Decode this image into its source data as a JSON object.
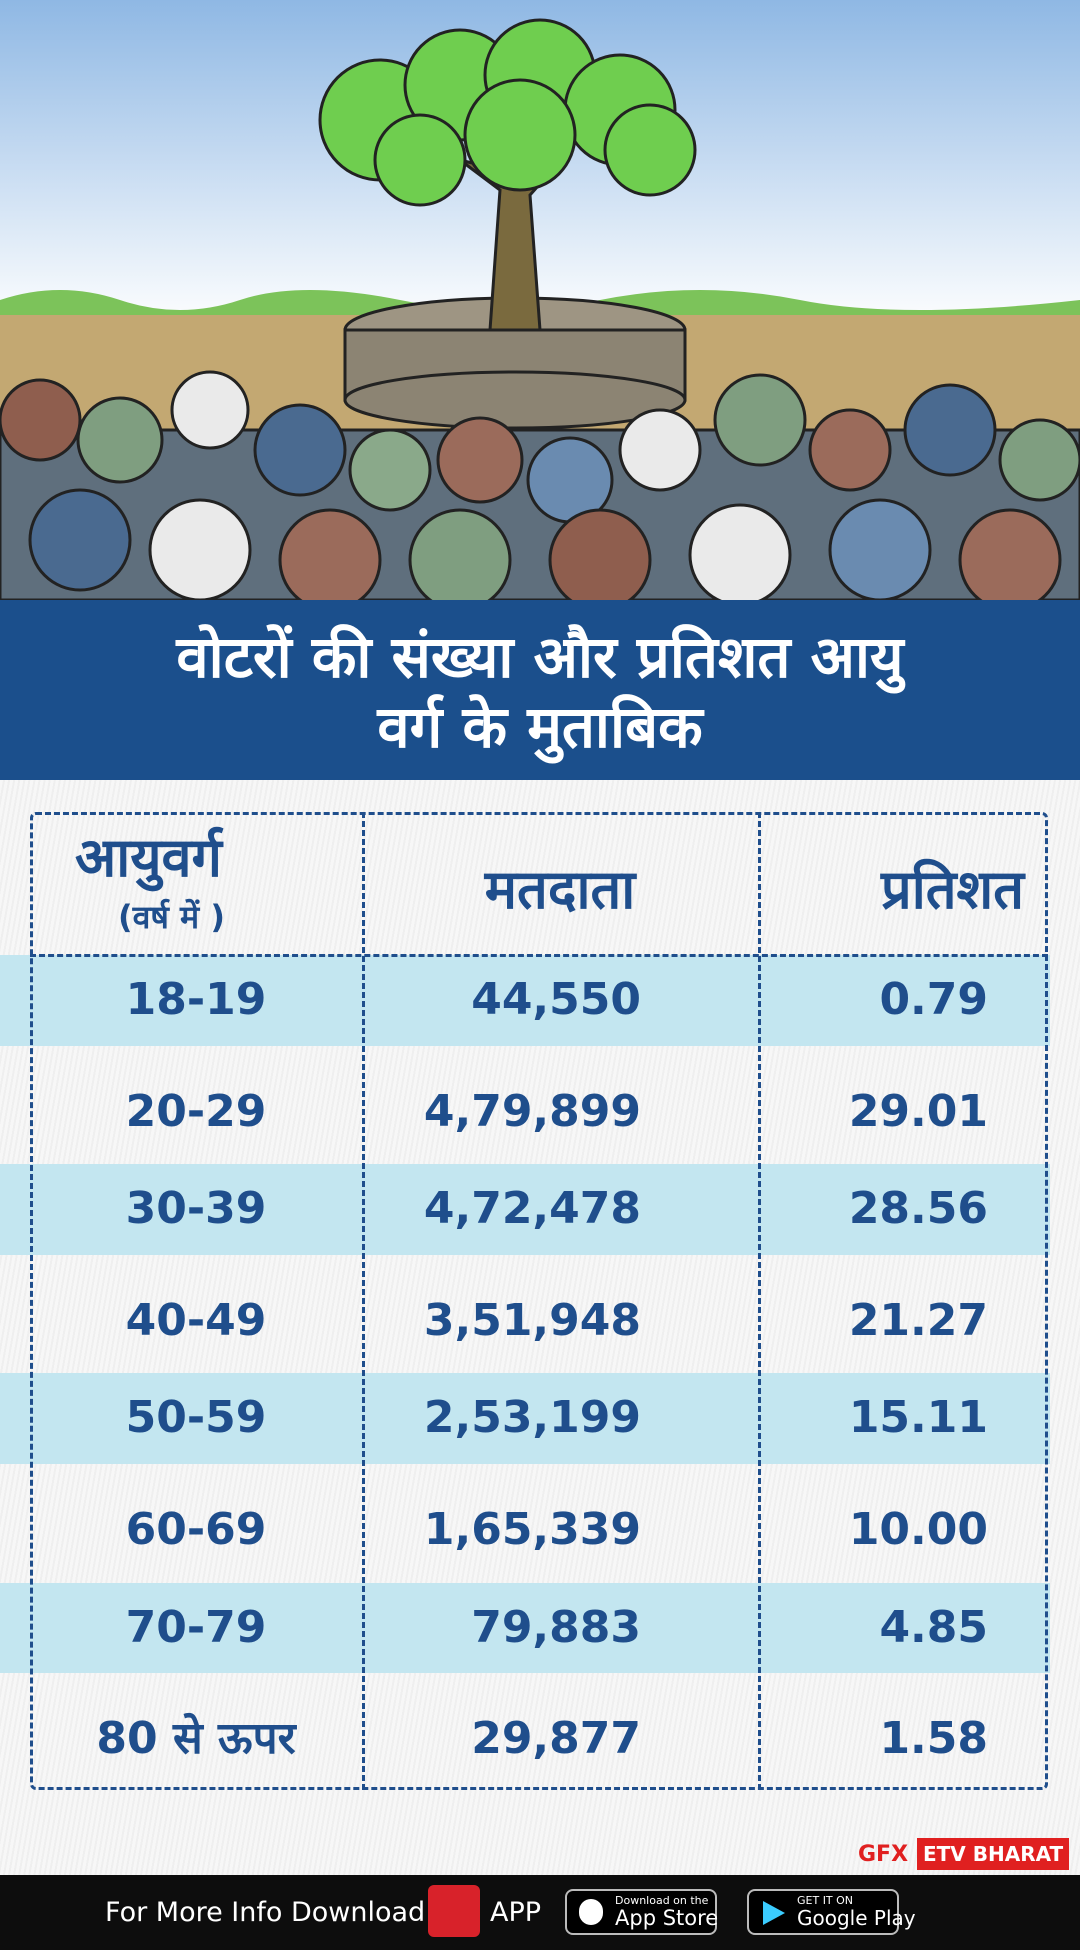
{
  "header": {
    "title": [
      "वोटरों की संख्या और प्रतिशत आयु",
      "वर्ग के मुताबिक"
    ]
  },
  "table": {
    "columns": [
      "आयुवर्ग",
      "मतदाता",
      "प्रतिशत"
    ],
    "column_note": "(वर्ष में )",
    "rows": [
      [
        "18-19",
        "44,550",
        "0.79"
      ],
      [
        "20-29",
        "4,79,899",
        "29.01"
      ],
      [
        "30-39",
        "4,72,478",
        "28.56"
      ],
      [
        "40-49",
        "3,51,948",
        "21.27"
      ],
      [
        "50-59",
        "2,53,199",
        "15.11"
      ],
      [
        "60-69",
        "1,65,339",
        "10.00"
      ],
      [
        "70-79",
        "79,883",
        "4.85"
      ],
      [
        "80 से ऊपर",
        "29,877",
        "1.58"
      ]
    ]
  },
  "credit": {
    "gfx": "GFX",
    "brand": "ETV BHARAT"
  },
  "footer": {
    "text": "For More Info Download",
    "app": "APP",
    "appstore_small": "Download on the",
    "appstore": "App Store",
    "play_small": "GET IT ON",
    "play": "Google Play"
  }
}
